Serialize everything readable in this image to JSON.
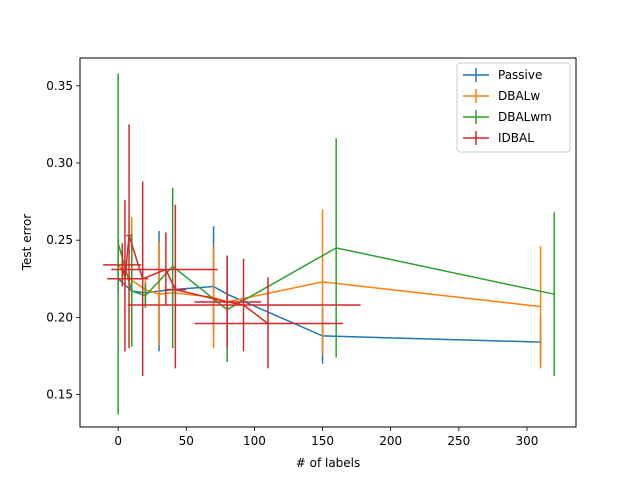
{
  "chart_data": {
    "type": "line",
    "title": "",
    "xlabel": "# of labels",
    "ylabel": "Test error",
    "xlim": [
      -28,
      336
    ],
    "ylim": [
      0.129,
      0.368
    ],
    "xticks": [
      0,
      50,
      100,
      150,
      200,
      250,
      300
    ],
    "yticks": [
      0.15,
      0.2,
      0.25,
      0.3,
      0.35
    ],
    "ytick_labels": [
      "0.15",
      "0.20",
      "0.25",
      "0.30",
      "0.35"
    ],
    "legend_position": "top-right",
    "grid": false,
    "series": [
      {
        "name": "Passive",
        "color": "#1f77b4",
        "points": [
          {
            "x": 0,
            "y": 0.225,
            "ylo": 0.215,
            "yhi": 0.235
          },
          {
            "x": 10,
            "y": 0.217,
            "ylo": 0.209,
            "yhi": 0.224
          },
          {
            "x": 20,
            "y": 0.216,
            "ylo": 0.208,
            "yhi": 0.223
          },
          {
            "x": 30,
            "y": 0.217,
            "ylo": 0.178,
            "yhi": 0.256
          },
          {
            "x": 40,
            "y": 0.218,
            "ylo": 0.214,
            "yhi": 0.222
          },
          {
            "x": 70,
            "y": 0.22,
            "ylo": 0.19,
            "yhi": 0.259
          },
          {
            "x": 80,
            "y": 0.215,
            "ylo": 0.212,
            "yhi": 0.218
          },
          {
            "x": 150,
            "y": 0.188,
            "ylo": 0.17,
            "yhi": 0.206
          },
          {
            "x": 310,
            "y": 0.184,
            "ylo": 0.168,
            "yhi": 0.2
          }
        ]
      },
      {
        "name": "DBALw",
        "color": "#ff7f0e",
        "points": [
          {
            "x": 0,
            "y": 0.234,
            "ylo": 0.218,
            "yhi": 0.25
          },
          {
            "x": 10,
            "y": 0.224,
            "ylo": 0.183,
            "yhi": 0.265
          },
          {
            "x": 20,
            "y": 0.218,
            "ylo": 0.212,
            "yhi": 0.224
          },
          {
            "x": 30,
            "y": 0.215,
            "ylo": 0.182,
            "yhi": 0.249
          },
          {
            "x": 40,
            "y": 0.216,
            "ylo": 0.21,
            "yhi": 0.222
          },
          {
            "x": 70,
            "y": 0.213,
            "ylo": 0.18,
            "yhi": 0.246
          },
          {
            "x": 80,
            "y": 0.21,
            "ylo": 0.205,
            "yhi": 0.215
          },
          {
            "x": 150,
            "y": 0.223,
            "ylo": 0.176,
            "yhi": 0.27
          },
          {
            "x": 310,
            "y": 0.207,
            "ylo": 0.167,
            "yhi": 0.246
          }
        ]
      },
      {
        "name": "DBALwm",
        "color": "#2ca02c",
        "points": [
          {
            "x": 0,
            "y": 0.248,
            "ylo": 0.137,
            "yhi": 0.358
          },
          {
            "x": 10,
            "y": 0.217,
            "ylo": 0.181,
            "yhi": 0.254
          },
          {
            "x": 20,
            "y": 0.214,
            "ylo": 0.206,
            "yhi": 0.222
          },
          {
            "x": 40,
            "y": 0.233,
            "ylo": 0.18,
            "yhi": 0.284
          },
          {
            "x": 80,
            "y": 0.205,
            "ylo": 0.171,
            "yhi": 0.24
          },
          {
            "x": 160,
            "y": 0.245,
            "ylo": 0.174,
            "yhi": 0.316
          },
          {
            "x": 320,
            "y": 0.215,
            "ylo": 0.162,
            "yhi": 0.268
          }
        ]
      },
      {
        "name": "IDBAL",
        "color": "#d62728",
        "points": [
          {
            "x": 3,
            "y": 0.234,
            "ylo": 0.22,
            "yhi": 0.248,
            "xlo": -11,
            "xhi": 17
          },
          {
            "x": 5,
            "y": 0.225,
            "ylo": 0.178,
            "yhi": 0.276,
            "xlo": -8,
            "xhi": 18
          },
          {
            "x": 8,
            "y": 0.253,
            "ylo": 0.18,
            "yhi": 0.325,
            "xlo": 6,
            "xhi": 10
          },
          {
            "x": 18,
            "y": 0.225,
            "ylo": 0.162,
            "yhi": 0.288,
            "xlo": 14,
            "xhi": 22
          },
          {
            "x": 35,
            "y": 0.231,
            "ylo": 0.208,
            "yhi": 0.255,
            "xlo": -5,
            "xhi": 73
          },
          {
            "x": 42,
            "y": 0.218,
            "ylo": 0.167,
            "yhi": 0.273,
            "xlo": 34,
            "xhi": 50
          },
          {
            "x": 80,
            "y": 0.21,
            "ylo": 0.18,
            "yhi": 0.24,
            "xlo": 56,
            "xhi": 105
          },
          {
            "x": 92,
            "y": 0.208,
            "ylo": 0.178,
            "yhi": 0.238,
            "xlo": 7,
            "xhi": 178
          },
          {
            "x": 110,
            "y": 0.196,
            "ylo": 0.167,
            "yhi": 0.226,
            "xlo": 56,
            "xhi": 165
          }
        ]
      }
    ]
  }
}
